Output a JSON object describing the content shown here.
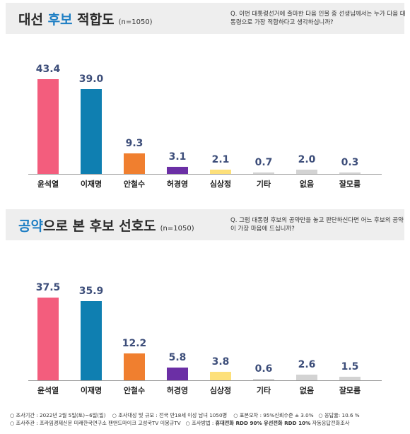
{
  "sections": [
    {
      "title_plain": "대선 ",
      "title_highlight": "후보",
      "title_rest": " 적합도",
      "n_label": "(n=1050)",
      "question": "Q. 이번 대통령선거에 출마한 다음 인물 중 선생님께서는 누가 다음 대통령으로 가장 적합하다고 생각하십니까?"
    },
    {
      "title_plain": "",
      "title_highlight": "공약",
      "title_rest": "으로 본 후보 선호도",
      "n_label": "(n=1050)",
      "question": "Q. 그럼 대통령 후보의 공약만을 놓고 판단하신다면 어느 후보의 공약이 가장 마음에 드십니까?"
    }
  ],
  "colors": [
    "#f35d7d",
    "#0f7fb1",
    "#f07f2f",
    "#6b2fa5",
    "#fde07a",
    "#d3d3d3",
    "#d3d3d3",
    "#d3d3d3"
  ],
  "chart_data": [
    {
      "type": "bar",
      "title": "대선 후보 적합도",
      "categories": [
        "윤석열",
        "이재명",
        "안철수",
        "허경영",
        "심상정",
        "기타",
        "없음",
        "잘모름"
      ],
      "values": [
        43.4,
        39.0,
        9.3,
        3.1,
        2.1,
        0.7,
        2.0,
        0.3
      ],
      "value_labels": [
        "43.4",
        "39.0",
        "9.3",
        "3.1",
        "2.1",
        "0.7",
        "2.0",
        "0.3"
      ]
    },
    {
      "type": "bar",
      "title": "공약으로 본 후보 선호도",
      "categories": [
        "윤석열",
        "이재명",
        "안철수",
        "허경영",
        "심상정",
        "기타",
        "없음",
        "잘모름"
      ],
      "values": [
        37.5,
        35.9,
        12.2,
        5.8,
        3.8,
        0.6,
        2.6,
        1.5
      ],
      "value_labels": [
        "37.5",
        "35.9",
        "12.2",
        "5.8",
        "3.8",
        "0.6",
        "2.6",
        "1.5"
      ]
    }
  ],
  "footer": {
    "line1_a": "○ 조사기간 : 2022년 2월 5일(토)~6일(일)",
    "line1_b": "○ 조사대상 및 규모 : 전국 만18세 이상 남녀 1050명",
    "line1_c": "○ 표본오차 : 95%신뢰수준 ± 3.0%",
    "line1_d": "○ 응답율: 10.6 %",
    "line2_a": "○ 조사주관 : 프라임경제신문 미래한국연구소 팬앤드마이크 고성국TV 이봉규TV",
    "line2_b": "○ 조사방법 : ",
    "line2_c": "휴대전화 RDD 90% 유선전화 RDD 10%",
    "line2_d": " 자동응답전화조사"
  }
}
